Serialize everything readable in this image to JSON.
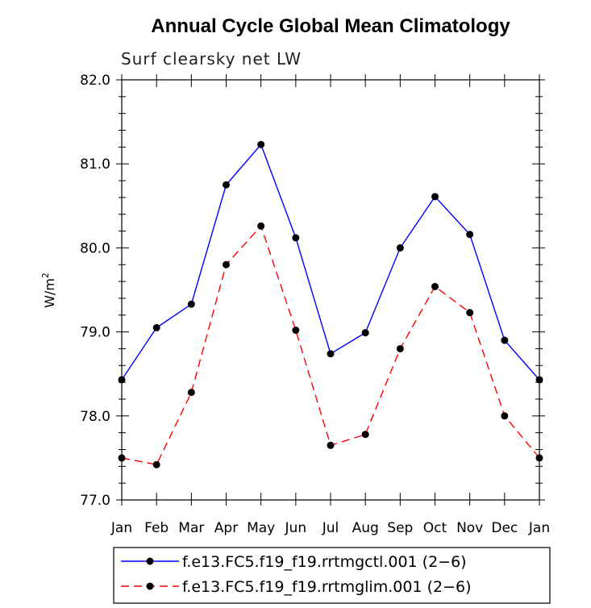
{
  "chart_data": {
    "type": "line",
    "title": "Annual Cycle Global Mean Climatology",
    "subtitle": "Surf clearsky net LW",
    "ylabel": "W/m",
    "ylabel_superscript": "2",
    "ylim": [
      77.0,
      82.0
    ],
    "yticks": [
      "77.0",
      "78.0",
      "79.0",
      "80.0",
      "81.0",
      "82.0"
    ],
    "categories": [
      "Jan",
      "Feb",
      "Mar",
      "Apr",
      "May",
      "Jun",
      "Jul",
      "Aug",
      "Sep",
      "Oct",
      "Nov",
      "Dec",
      "Jan"
    ],
    "series": [
      {
        "name": "f.e13.FC5.f19_f19.rrtmgctl.001 (2−6)",
        "color": "#0000ff",
        "dash": "solid",
        "values": [
          78.43,
          79.05,
          79.33,
          80.75,
          81.23,
          80.12,
          78.74,
          78.99,
          80.0,
          80.61,
          80.16,
          78.9,
          78.43
        ]
      },
      {
        "name": "f.e13.FC5.f19_f19.rrtmglim.001 (2−6)",
        "color": "#ff0000",
        "dash": "dashed",
        "values": [
          77.5,
          77.42,
          78.28,
          79.8,
          80.26,
          79.02,
          77.65,
          77.78,
          78.8,
          79.54,
          79.23,
          78.0,
          77.5
        ]
      }
    ],
    "grid": false,
    "legend_position": "bottom"
  }
}
